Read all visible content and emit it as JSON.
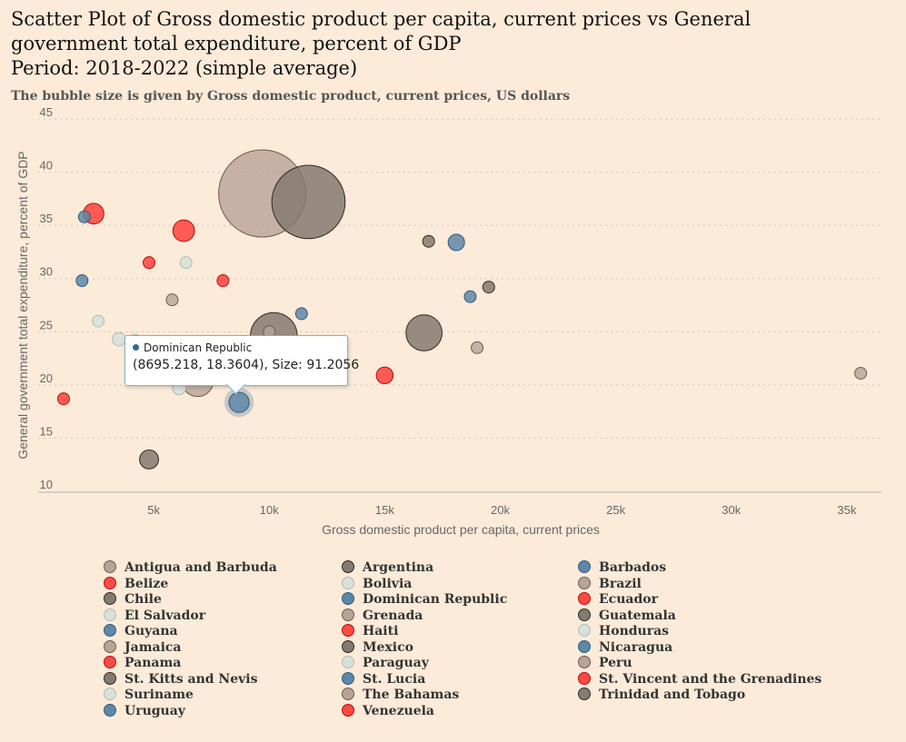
{
  "title_lines": [
    "Scatter Plot of Gross domestic product per capita, current prices vs General",
    "government total expenditure, percent of GDP",
    "Period: 2018-2022 (simple average)"
  ],
  "subtitle": "The bubble size is given by Gross domestic product, current prices, US dollars",
  "colors": {
    "background": "#fdebd9",
    "brown": "#b8a396",
    "red": "#ff4a44",
    "dark": "#857a70",
    "pale": "#d8e1d9",
    "blue": "#5f87a8"
  },
  "tooltip": {
    "name": "Dominican Republic",
    "values": "(8695.218, 18.3604), Size: 91.2056"
  },
  "chart_data": {
    "type": "scatter",
    "title": "Scatter Plot of Gross domestic product per capita, current prices vs General government total expenditure, percent of GDP",
    "subtitle": "The bubble size is given by Gross domestic product, current prices, US dollars",
    "xlabel": "Gross domestic product per capita, current prices",
    "ylabel": "General government total expenditure, percent of GDP",
    "xlim": [
      0,
      36500
    ],
    "ylim": [
      10,
      45
    ],
    "x_ticks": [
      5000,
      10000,
      15000,
      20000,
      25000,
      30000,
      35000
    ],
    "x_tick_labels": [
      "5k",
      "10k",
      "15k",
      "20k",
      "25k",
      "30k",
      "35k"
    ],
    "y_ticks": [
      10,
      15,
      20,
      25,
      30,
      35,
      40,
      45
    ],
    "grid": "horizontal dotted",
    "legend_position": "bottom",
    "series": [
      {
        "name": "Antigua and Barbuda",
        "color": "brown",
        "x": 19000,
        "y": 23.5,
        "size": 1.6
      },
      {
        "name": "Argentina",
        "color": "dark",
        "x": 10200,
        "y": 24.6,
        "size": 490
      },
      {
        "name": "Barbados",
        "color": "blue",
        "x": 18700,
        "y": 28.3,
        "size": 5
      },
      {
        "name": "Belize",
        "color": "red",
        "x": 4800,
        "y": 31.5,
        "size": 1.9
      },
      {
        "name": "Bolivia",
        "color": "pale",
        "x": 3500,
        "y": 24.3,
        "size": 40
      },
      {
        "name": "Brazil",
        "color": "brown",
        "x": 9700,
        "y": 38.0,
        "size": 1700
      },
      {
        "name": "Chile",
        "color": "dark",
        "x": 16700,
        "y": 24.9,
        "size": 290
      },
      {
        "name": "Dominican Republic",
        "color": "blue",
        "x": 8695.218,
        "y": 18.3604,
        "size": 91.2056
      },
      {
        "name": "Ecuador",
        "color": "red",
        "x": 6300,
        "y": 34.5,
        "size": 105
      },
      {
        "name": "El Salvador",
        "color": "pale",
        "x": 4200,
        "y": 24.2,
        "size": 27
      },
      {
        "name": "Grenada",
        "color": "brown",
        "x": 10000,
        "y": 25.0,
        "size": 1.2
      },
      {
        "name": "Guatemala",
        "color": "dark",
        "x": 4800,
        "y": 13.0,
        "size": 80
      },
      {
        "name": "Guyana",
        "color": "blue",
        "x": 1900,
        "y": 29.8,
        "size": 4.5
      },
      {
        "name": "Haiti",
        "color": "red",
        "x": 1100,
        "y": 18.7,
        "size": 16
      },
      {
        "name": "Honduras",
        "color": "pale",
        "x": 2600,
        "y": 26.0,
        "size": 26
      },
      {
        "name": "Jamaica",
        "color": "brown",
        "x": 5800,
        "y": 28.0,
        "size": 15
      },
      {
        "name": "Mexico",
        "color": "dark",
        "x": 11700,
        "y": 37.2,
        "size": 1200
      },
      {
        "name": "Nicaragua",
        "color": "blue",
        "x": 2000,
        "y": 35.8,
        "size": 13
      },
      {
        "name": "Panama",
        "color": "red",
        "x": 15000,
        "y": 20.9,
        "size": 63
      },
      {
        "name": "Paraguay",
        "color": "pale",
        "x": 6100,
        "y": 19.7,
        "size": 39
      },
      {
        "name": "Peru",
        "color": "brown",
        "x": 6900,
        "y": 20.4,
        "size": 225
      },
      {
        "name": "St. Kitts and Nevis",
        "color": "dark",
        "x": 19500,
        "y": 29.2,
        "size": 1
      },
      {
        "name": "St. Lucia",
        "color": "blue",
        "x": 11400,
        "y": 26.7,
        "size": 2
      },
      {
        "name": "St. Vincent and the Grenadines",
        "color": "red",
        "x": 8000,
        "y": 29.8,
        "size": 0.9
      },
      {
        "name": "Suriname",
        "color": "pale",
        "x": 6400,
        "y": 31.5,
        "size": 3.5
      },
      {
        "name": "The Bahamas",
        "color": "brown",
        "x": 35600,
        "y": 21.1,
        "size": 12
      },
      {
        "name": "Trinidad and Tobago",
        "color": "dark",
        "x": 16900,
        "y": 33.5,
        "size": 23
      },
      {
        "name": "Uruguay",
        "color": "blue",
        "x": 18100,
        "y": 33.4,
        "size": 60
      },
      {
        "name": "Venezuela",
        "color": "red",
        "x": 2400,
        "y": 36.1,
        "size": 95
      }
    ]
  }
}
